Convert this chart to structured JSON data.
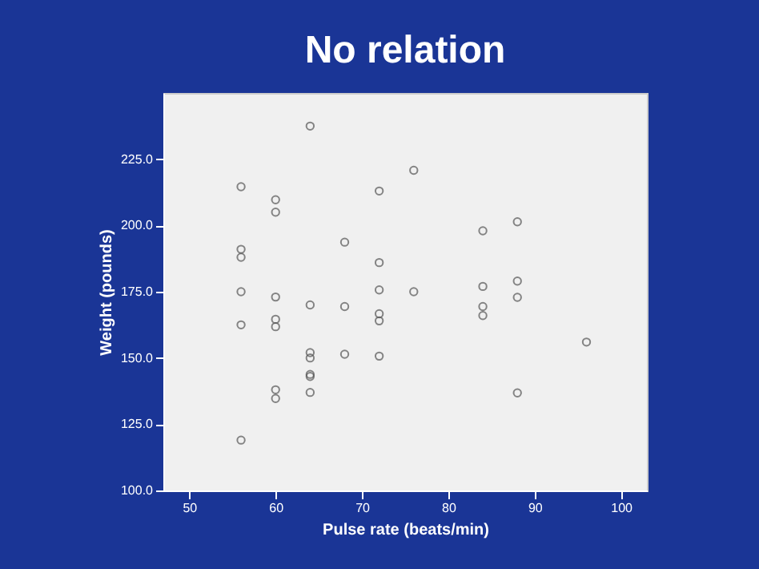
{
  "chart_data": {
    "type": "scatter",
    "title": "No relation",
    "xlabel": "Pulse rate (beats/min)",
    "ylabel": "Weight (pounds)",
    "x": [
      56,
      56,
      56,
      56,
      56,
      56,
      60,
      60,
      60,
      60,
      60,
      60,
      60,
      64,
      64,
      64,
      64,
      64,
      64,
      64,
      68,
      68,
      68,
      72,
      72,
      72,
      72,
      72,
      72,
      76,
      76,
      84,
      84,
      84,
      84,
      88,
      88,
      88,
      88,
      96
    ],
    "series": [
      {
        "color": "#555555",
        "values": [
          214.6,
          191,
          188,
          175,
          162.5,
          119,
          209.7,
          205,
          173,
          164.6,
          161.8,
          138,
          134.7,
          237.5,
          170,
          152,
          150,
          143.8,
          143,
          137,
          193.7,
          169.4,
          151.4,
          213,
          186,
          175.7,
          166.7,
          164,
          150.7,
          220.8,
          175,
          198,
          177,
          169.4,
          166,
          201.4,
          179,
          172.9,
          136.8,
          156
        ]
      }
    ],
    "xlim": [
      47,
      103
    ],
    "xticks": [
      50,
      60,
      70,
      80,
      90,
      100
    ],
    "ylim": [
      100,
      250
    ],
    "yticks": [
      {
        "value": 100,
        "label": "100.0"
      },
      {
        "value": 125,
        "label": "125.0"
      },
      {
        "value": 150,
        "label": "150.0"
      },
      {
        "value": 175,
        "label": "175.0"
      },
      {
        "value": 200,
        "label": "200.0"
      },
      {
        "value": 225,
        "label": "225.0"
      }
    ],
    "marker": "circle",
    "grid": false
  }
}
